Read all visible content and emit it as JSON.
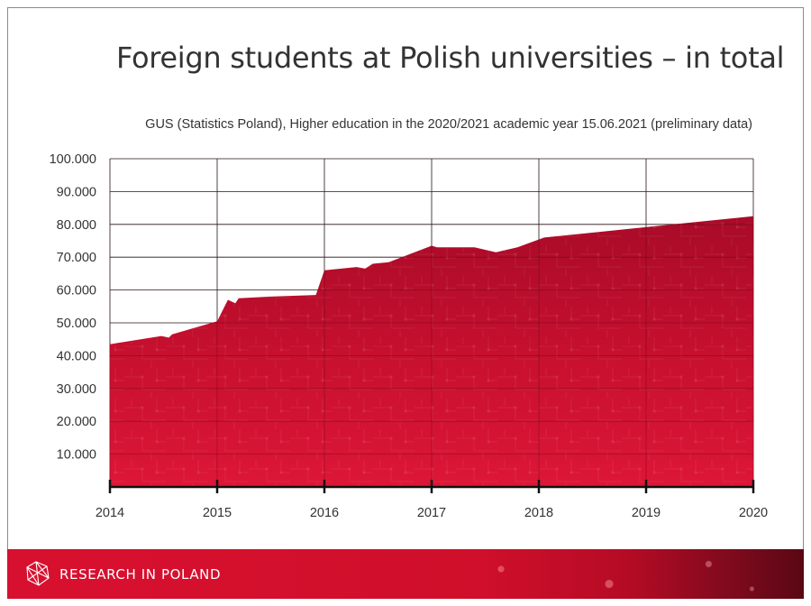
{
  "slide": {
    "title": "Foreign students at Polish universities – in total",
    "subtitle": "GUS (Statistics Poland), Higher education in the 2020/2021 academic year 15.06.2021 (preliminary data)"
  },
  "footer": {
    "brand": "RESEARCH IN POLAND",
    "logo_icon": "polygon-network-logo-icon"
  },
  "colors": {
    "area_top": "#b30d2b",
    "area_bottom": "#d81333",
    "footer_red": "#d8102f",
    "grid": "#333333",
    "text": "#333333"
  },
  "chart_data": {
    "type": "area",
    "title": "Foreign students at Polish universities – in total",
    "xlabel": "",
    "ylabel": "",
    "xlim": [
      2014,
      2020
    ],
    "ylim": [
      0,
      100000
    ],
    "grid": true,
    "legend": "none",
    "x_ticks": [
      "2014",
      "2015",
      "2016",
      "2017",
      "2018",
      "2019",
      "2020"
    ],
    "y_ticks": [
      "10.000",
      "20.000",
      "30.000",
      "40.000",
      "50.000",
      "60.000",
      "70.000",
      "80.000",
      "90.000",
      "100.000"
    ],
    "series": [
      {
        "x": [
          2014,
          2014.48,
          2014.55,
          2014.58,
          2015,
          2015.1,
          2015.17,
          2015.2,
          2015.5,
          2015.92,
          2016,
          2016.3,
          2016.38,
          2016.45,
          2016.6,
          2017,
          2017.05,
          2017.4,
          2017.6,
          2017.8,
          2018.05,
          2020
        ],
        "y": [
          43500,
          46000,
          45500,
          46500,
          50500,
          57000,
          56000,
          57500,
          58000,
          58500,
          66000,
          67000,
          66500,
          68000,
          68500,
          73500,
          73000,
          73000,
          71500,
          73000,
          76000,
          82500
        ]
      }
    ]
  }
}
